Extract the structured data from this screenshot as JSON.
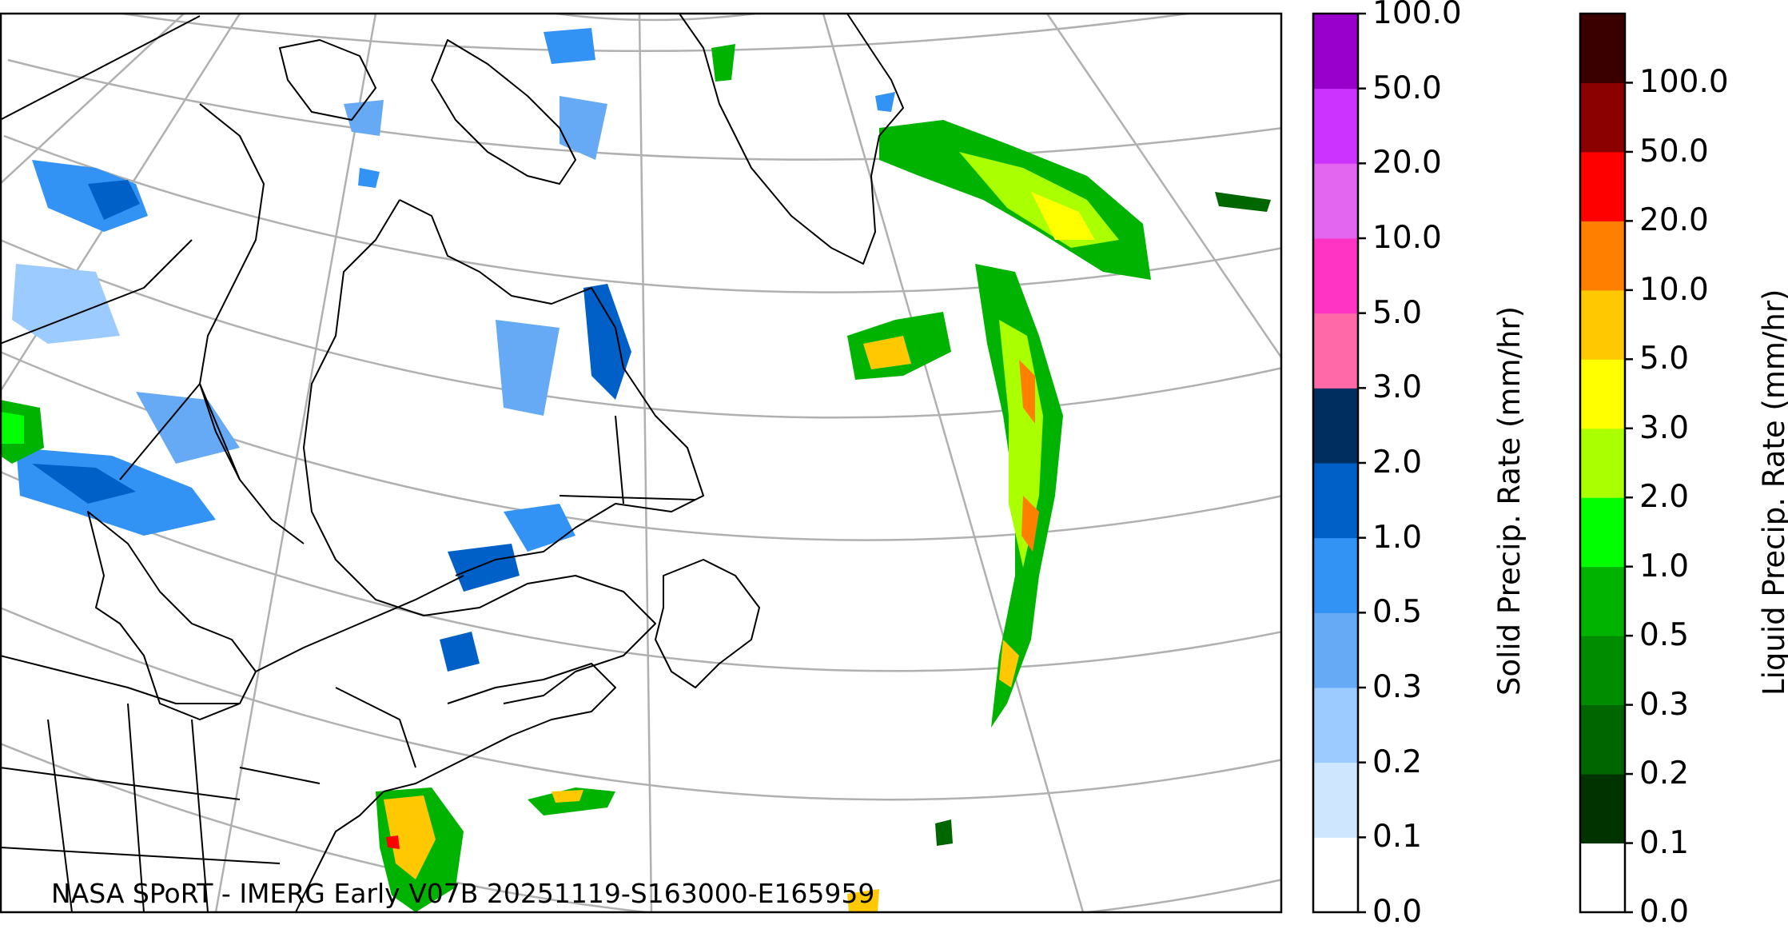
{
  "credit": "NASA SPoRT - IMERG Early V07B 20251119-S163000-E165959",
  "colors": {
    "land_outline": "#000000",
    "graticule": "#b0b0b0"
  },
  "colorbars": [
    {
      "title": "Solid Precip. Rate (mm/hr)",
      "ticks": [
        "0.0",
        "0.1",
        "0.2",
        "0.3",
        "0.5",
        "1.0",
        "2.0",
        "3.0",
        "5.0",
        "10.0",
        "20.0",
        "50.0",
        "100.0"
      ],
      "colors": [
        "#ffffff",
        "#cfe6ff",
        "#9ccbff",
        "#66aaf5",
        "#3393f5",
        "#0060c8",
        "#002e5e",
        "#ff69a8",
        "#ff33c4",
        "#e266f0",
        "#cc33ff",
        "#9900cc"
      ]
    },
    {
      "title": "Liquid Precip. Rate (mm/hr)",
      "ticks": [
        "0.0",
        "0.1",
        "0.2",
        "0.3",
        "0.5",
        "1.0",
        "2.0",
        "3.0",
        "5.0",
        "10.0",
        "20.0",
        "50.0",
        "100.0"
      ],
      "colors": [
        "#ffffff",
        "#003300",
        "#006600",
        "#008c00",
        "#00b300",
        "#00ff00",
        "#aaff00",
        "#ffff00",
        "#ffc800",
        "#ff7f00",
        "#ff0000",
        "#8b0000",
        "#3a0000"
      ]
    }
  ]
}
